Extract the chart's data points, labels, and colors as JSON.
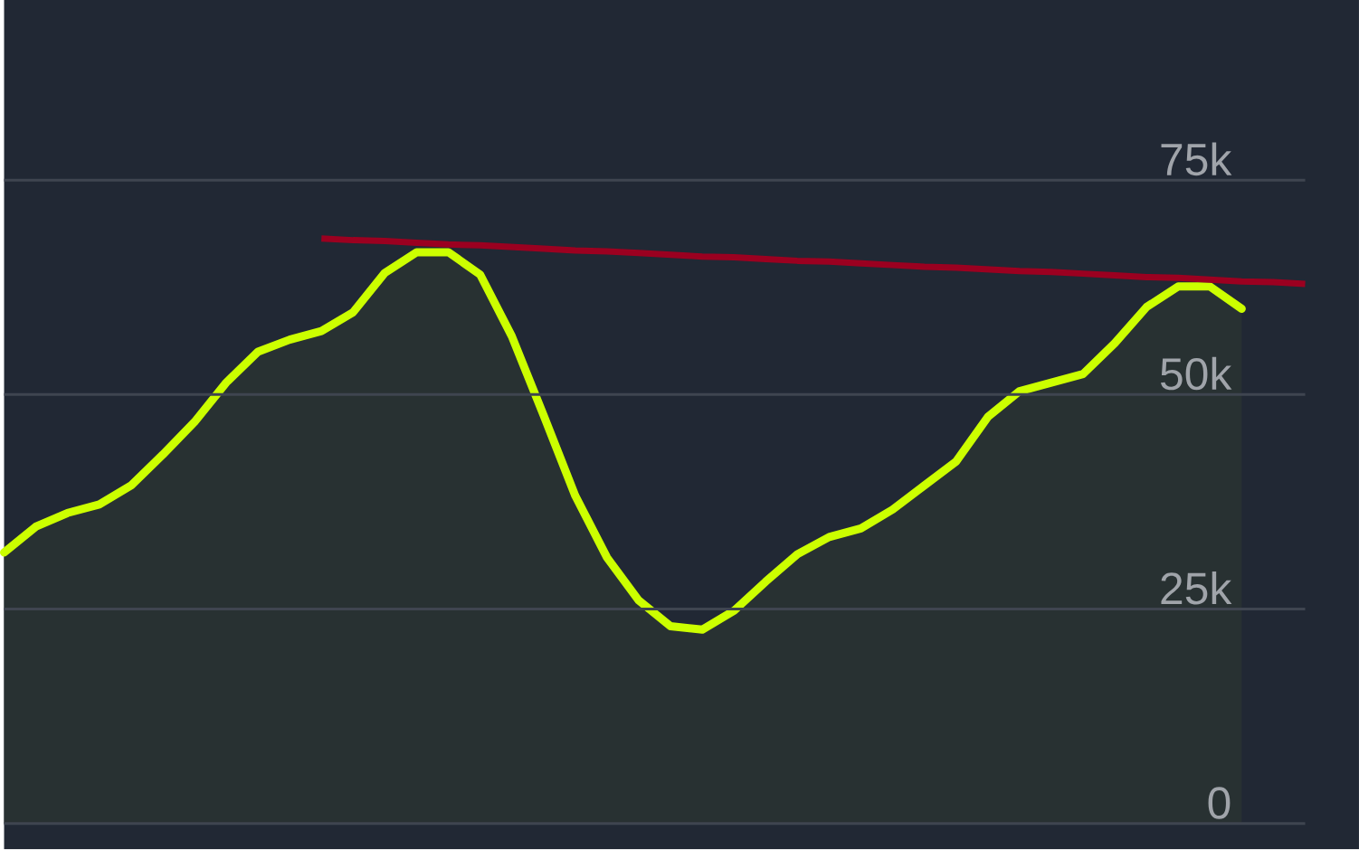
{
  "chart_data": {
    "type": "area",
    "categories": [
      null,
      null,
      null,
      null,
      null,
      null,
      null,
      null,
      null,
      null,
      null,
      null,
      null,
      null,
      null,
      null,
      null,
      null,
      null,
      null,
      null,
      null,
      null,
      null,
      null,
      null,
      null,
      null,
      null,
      null,
      null,
      null,
      null,
      null,
      null,
      null,
      null,
      null,
      null,
      null,
      null,
      null
    ],
    "series": [
      {
        "color": "#ccff00",
        "values": [
          31600,
          34600,
          36200,
          37200,
          39400,
          43000,
          46800,
          51400,
          55000,
          56400,
          57400,
          59600,
          64200,
          66600,
          66600,
          64000,
          56800,
          47600,
          38200,
          31000,
          26000,
          23000,
          22600,
          24800,
          28200,
          31400,
          33400,
          34400,
          36600,
          39400,
          42200,
          47400,
          50400,
          51400,
          52400,
          56000,
          60200,
          62600,
          62600,
          60000,
          null,
          null
        ]
      },
      {
        "type": "line",
        "color": "#9b0020",
        "values": [
          null,
          null,
          null,
          null,
          null,
          null,
          null,
          null,
          null,
          null,
          68200,
          68000,
          67900,
          67700,
          67500,
          67400,
          67200,
          67000,
          66800,
          66700,
          66500,
          66300,
          66100,
          66000,
          65800,
          65600,
          65500,
          65300,
          65100,
          64900,
          64800,
          64600,
          64400,
          64300,
          64100,
          63900,
          63700,
          63600,
          63400,
          63200,
          63100,
          62900
        ]
      }
    ],
    "ylim": [
      -3000,
      96000
    ],
    "yticks": [
      0,
      {
        "value": 25000,
        "label": "25k"
      },
      {
        "value": 50000,
        "label": "50k"
      },
      {
        "value": 75000,
        "label": "75k"
      }
    ],
    "tick_labels": "y",
    "grid": "y"
  }
}
